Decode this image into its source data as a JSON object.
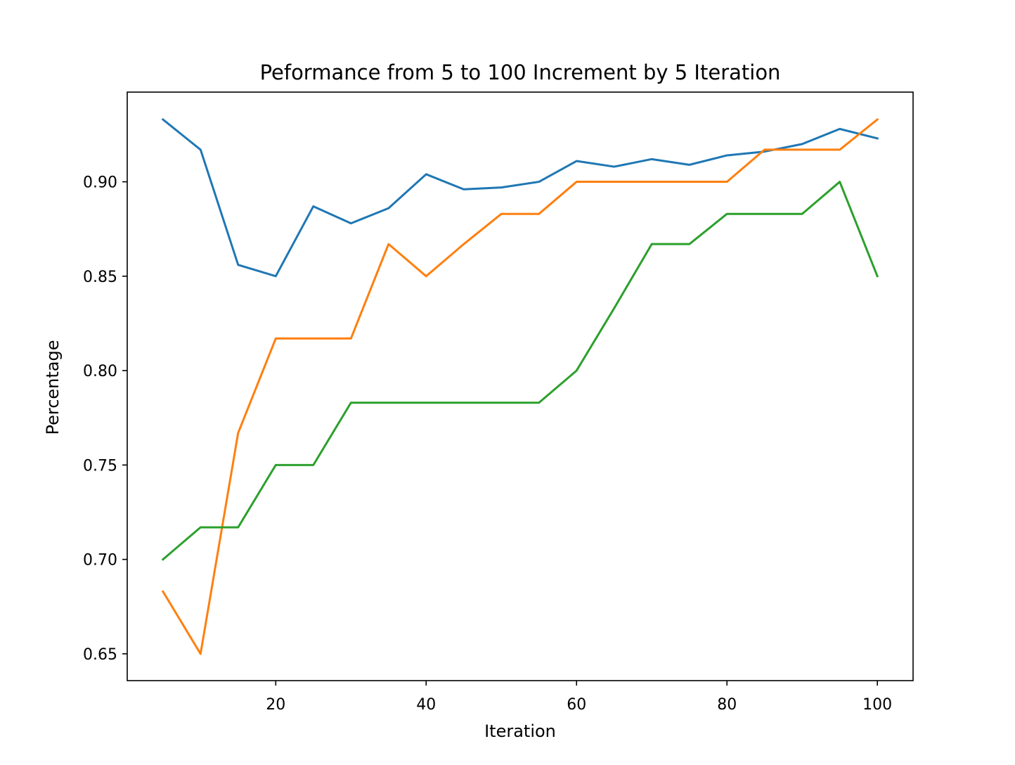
{
  "chart_data": {
    "type": "line",
    "title": "Peformance from 5 to 100 Increment by 5 Iteration",
    "xlabel": "Iteration",
    "ylabel": "Percentage",
    "xlim": [
      0.25,
      104.75
    ],
    "ylim": [
      0.6358,
      0.9475
    ],
    "xticks": [
      20,
      40,
      60,
      80,
      100
    ],
    "yticks": [
      0.65,
      0.7,
      0.75,
      0.8,
      0.85,
      0.9
    ],
    "ytick_labels": [
      "0.65",
      "0.70",
      "0.75",
      "0.80",
      "0.85",
      "0.90"
    ],
    "grid": false,
    "legend": "none",
    "x": [
      5,
      10,
      15,
      20,
      25,
      30,
      35,
      40,
      45,
      50,
      55,
      60,
      65,
      70,
      75,
      80,
      85,
      90,
      95,
      100
    ],
    "series": [
      {
        "color": "#1f77b4",
        "values": [
          0.933,
          0.917,
          0.856,
          0.85,
          0.887,
          0.878,
          0.886,
          0.904,
          0.896,
          0.897,
          0.9,
          0.911,
          0.908,
          0.912,
          0.909,
          0.914,
          0.916,
          0.92,
          0.928,
          0.923
        ]
      },
      {
        "color": "#ff7f0e",
        "values": [
          0.683,
          0.65,
          0.767,
          0.817,
          0.817,
          0.817,
          0.867,
          0.85,
          0.867,
          0.883,
          0.883,
          0.9,
          0.9,
          0.9,
          0.9,
          0.9,
          0.917,
          0.917,
          0.917,
          0.933
        ]
      },
      {
        "color": "#2ca02c",
        "values": [
          0.7,
          0.717,
          0.717,
          0.75,
          0.75,
          0.783,
          0.783,
          0.783,
          0.783,
          0.783,
          0.783,
          0.8,
          0.833,
          0.867,
          0.867,
          0.883,
          0.883,
          0.883,
          0.9,
          0.85
        ]
      }
    ]
  }
}
